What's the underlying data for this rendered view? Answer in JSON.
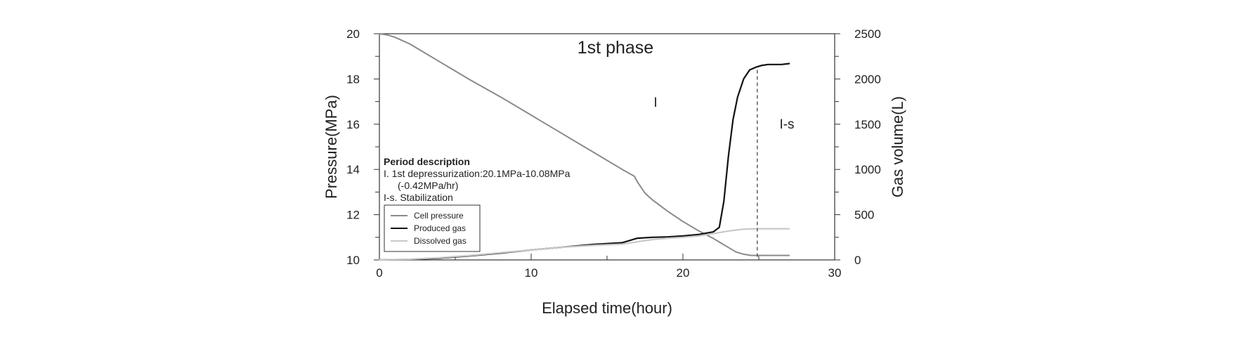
{
  "chart_data": {
    "type": "line",
    "title": "1st phase",
    "xlabel": "Elapsed time(hour)",
    "ylabel_left": "Pressure(MPa)",
    "ylabel_right": "Gas volume(L)",
    "xlim": [
      0,
      30
    ],
    "ylim_left": [
      10,
      20
    ],
    "ylim_right": [
      0,
      2500
    ],
    "x_ticks": [
      "0",
      "10",
      "20",
      "30"
    ],
    "y_left_ticks": [
      "10",
      "12",
      "14",
      "16",
      "18",
      "20"
    ],
    "y_right_ticks": [
      "0",
      "500",
      "1000",
      "1500",
      "2000",
      "2500"
    ],
    "grid": false,
    "legend_position": "bottom-left",
    "region_labels": [
      "I",
      "I-s"
    ],
    "phase_boundary_x": 24.9,
    "description": {
      "title": "Period description",
      "lines": [
        "I. 1st depressurization:20.1MPa-10.08MPa",
        "(-0.42MPa/hr)",
        "I-s. Stabilization"
      ]
    },
    "series": [
      {
        "name": "Cell pressure",
        "axis": "left",
        "color": "#8a8a8a",
        "x": [
          0,
          0.5,
          1,
          2,
          3,
          4,
          6,
          8,
          10,
          12,
          14,
          16,
          16.8,
          17,
          17.5,
          18,
          19,
          20,
          21,
          22,
          22.5,
          23,
          23.5,
          24,
          24.5,
          25,
          26,
          27
        ],
        "y": [
          20.0,
          19.95,
          19.85,
          19.55,
          19.15,
          18.75,
          17.95,
          17.2,
          16.4,
          15.6,
          14.8,
          14.0,
          13.7,
          13.45,
          12.95,
          12.65,
          12.15,
          11.7,
          11.3,
          10.95,
          10.75,
          10.55,
          10.35,
          10.25,
          10.2,
          10.2,
          10.2,
          10.2
        ]
      },
      {
        "name": "Produced gas",
        "axis": "right",
        "color": "#111111",
        "x": [
          0,
          2,
          4,
          6,
          8,
          10,
          12,
          14,
          16,
          17,
          18,
          19,
          20,
          21,
          22,
          22.4,
          22.7,
          23.0,
          23.3,
          23.6,
          24.0,
          24.4,
          24.8,
          25.2,
          25.6,
          26,
          26.5,
          27
        ],
        "y": [
          0,
          5,
          20,
          45,
          75,
          110,
          140,
          170,
          190,
          240,
          250,
          255,
          265,
          280,
          310,
          360,
          650,
          1150,
          1550,
          1800,
          2000,
          2100,
          2130,
          2150,
          2160,
          2160,
          2160,
          2170
        ]
      },
      {
        "name": "Dissolved gas",
        "axis": "right",
        "color": "#c8c8c8",
        "x": [
          0,
          2,
          4,
          6,
          8,
          10,
          12,
          14,
          16,
          17,
          18,
          19,
          20,
          21,
          22,
          23,
          24,
          25,
          26,
          27
        ],
        "y": [
          0,
          8,
          25,
          50,
          80,
          110,
          140,
          160,
          175,
          200,
          225,
          240,
          250,
          265,
          290,
          320,
          340,
          345,
          345,
          345
        ]
      }
    ]
  }
}
